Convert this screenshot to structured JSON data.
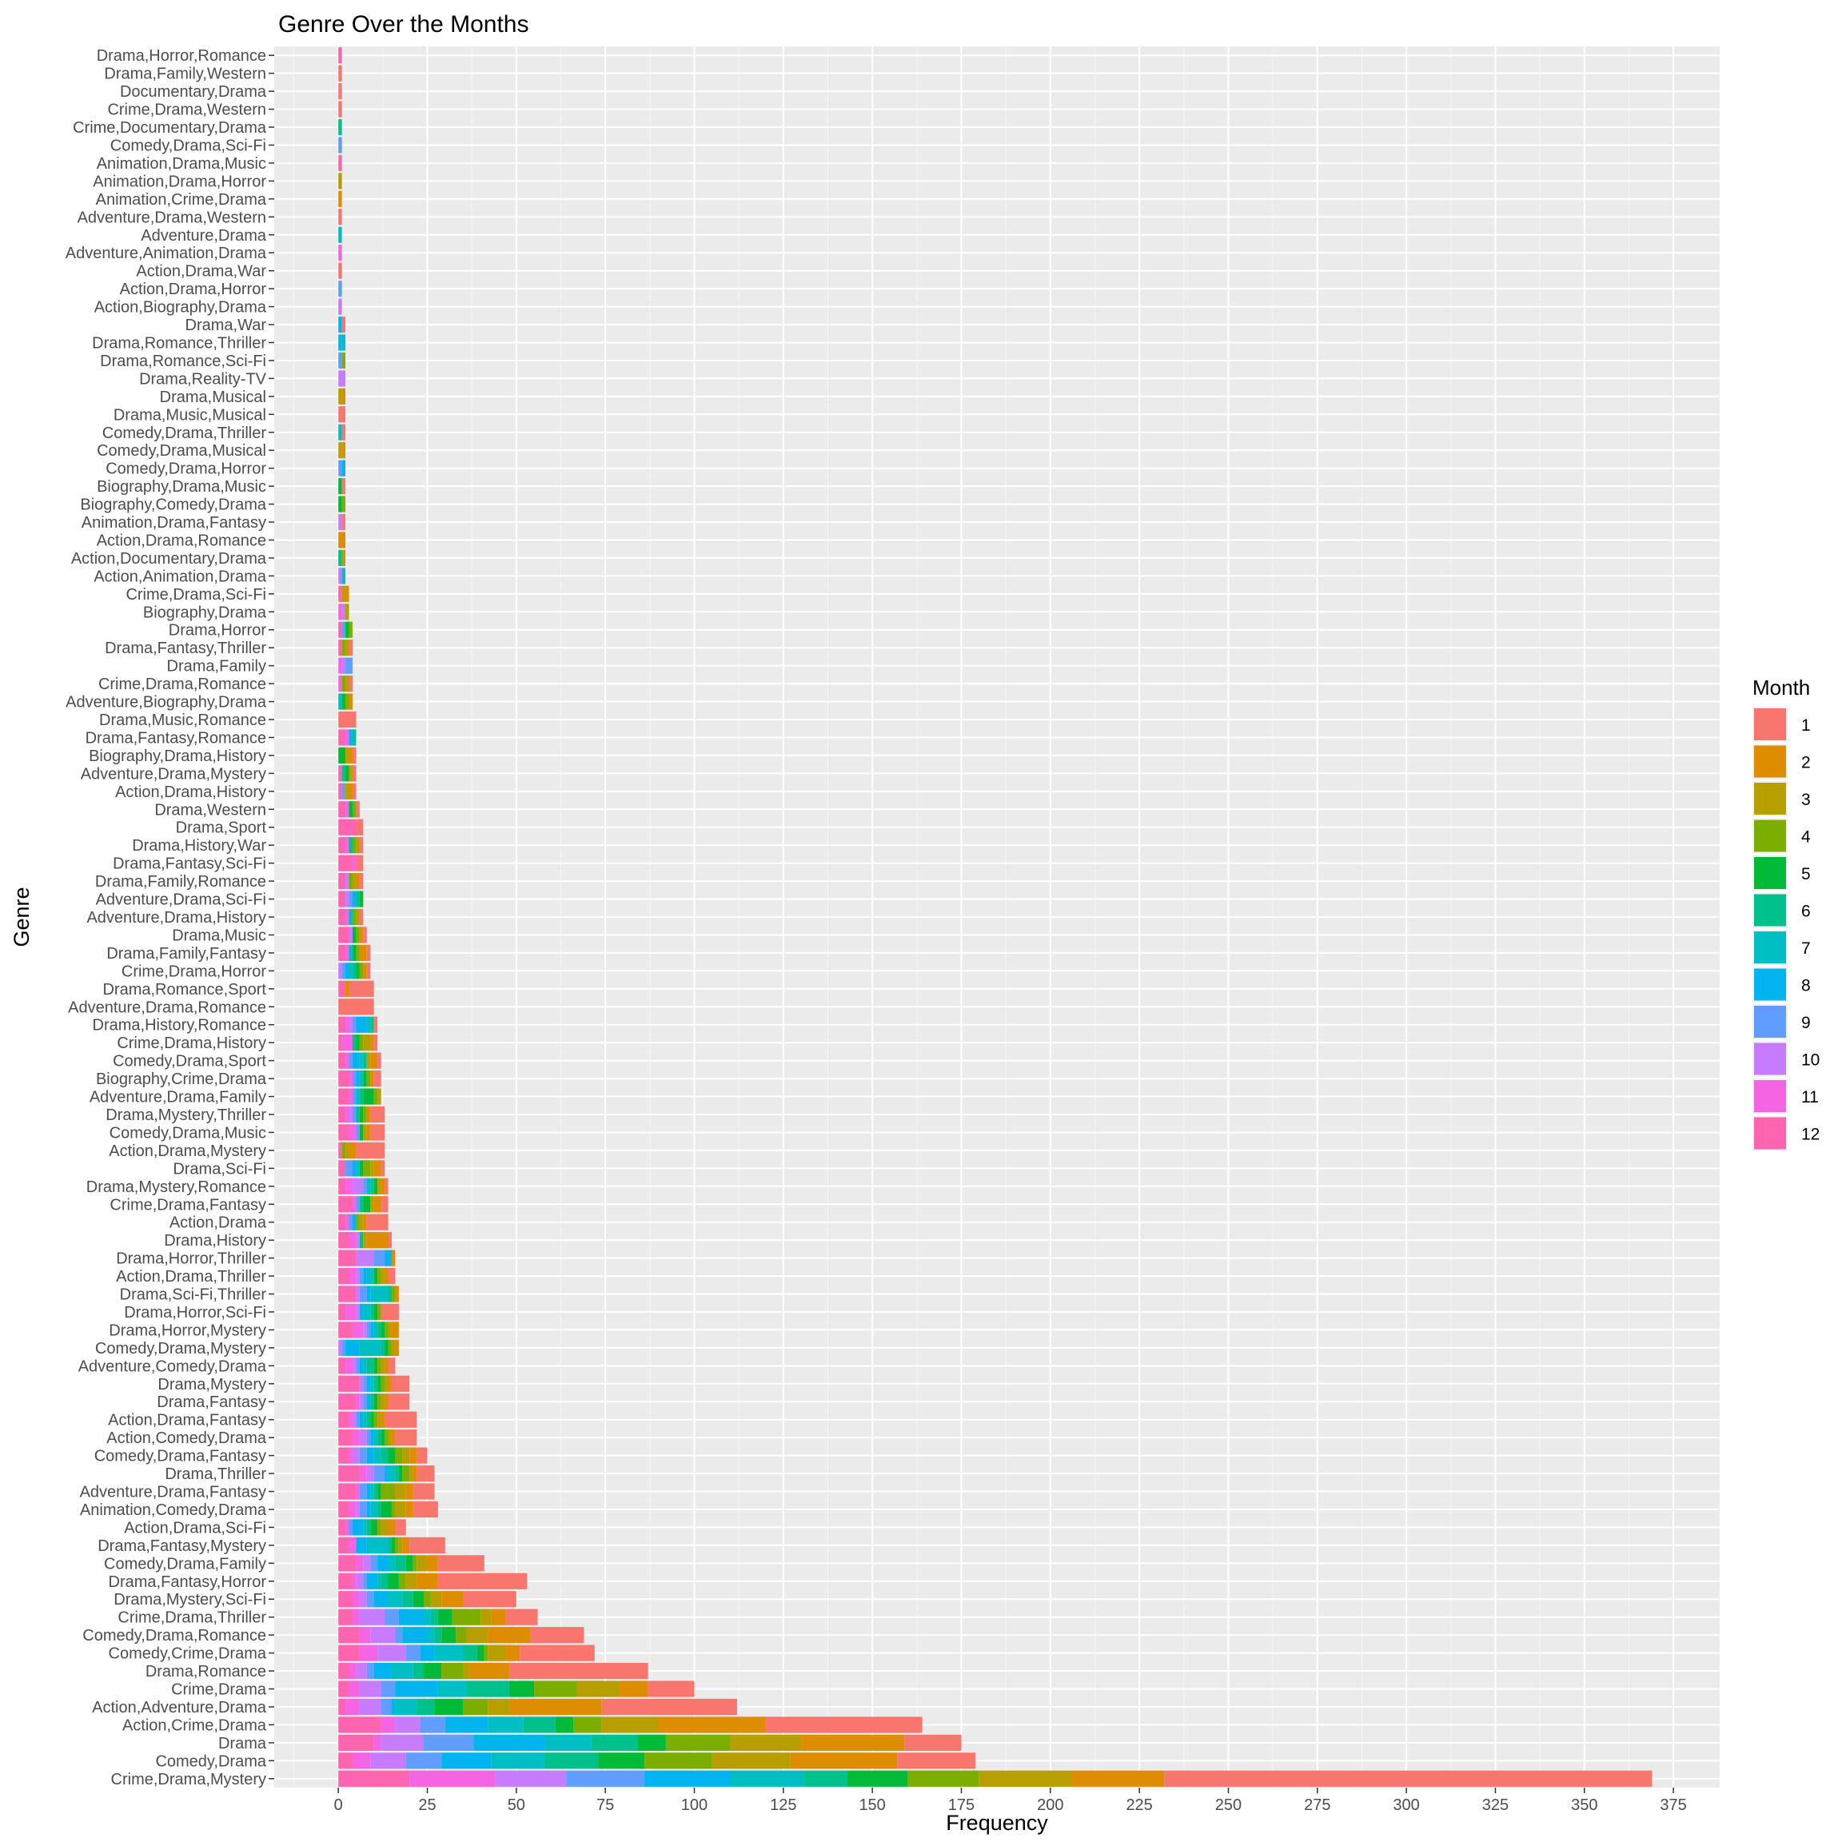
{
  "chart_data": {
    "type": "bar",
    "orientation": "horizontal",
    "stacked": true,
    "title": "Genre Over the Months",
    "xlabel": "Frequency",
    "ylabel": "Genre",
    "xlim": [
      -18,
      388
    ],
    "xticks": [
      0,
      25,
      50,
      75,
      100,
      125,
      150,
      175,
      200,
      225,
      250,
      275,
      300,
      325,
      350,
      375
    ],
    "grid": true,
    "legend": {
      "title": "Month",
      "position": "right",
      "entries": [
        "1",
        "2",
        "3",
        "4",
        "5",
        "6",
        "7",
        "8",
        "9",
        "10",
        "11",
        "12"
      ],
      "colors": [
        "#F8766D",
        "#DE8C00",
        "#B79F00",
        "#7CAE00",
        "#00BA38",
        "#00C08B",
        "#00BFC4",
        "#00B4F0",
        "#619CFF",
        "#C77CFF",
        "#F564E3",
        "#FF64B0"
      ]
    },
    "series_order": "stack from month 12 at zero outward to month 1",
    "categories": [
      "Drama,Horror,Romance",
      "Drama,Family,Western",
      "Documentary,Drama",
      "Crime,Drama,Western",
      "Crime,Documentary,Drama",
      "Comedy,Drama,Sci-Fi",
      "Animation,Drama,Music",
      "Animation,Drama,Horror",
      "Animation,Crime,Drama",
      "Adventure,Drama,Western",
      "Adventure,Drama",
      "Adventure,Animation,Drama",
      "Action,Drama,War",
      "Action,Drama,Horror",
      "Action,Biography,Drama",
      "Drama,War",
      "Drama,Romance,Thriller",
      "Drama,Romance,Sci-Fi",
      "Drama,Reality-TV",
      "Drama,Musical",
      "Drama,Music,Musical",
      "Comedy,Drama,Thriller",
      "Comedy,Drama,Musical",
      "Comedy,Drama,Horror",
      "Biography,Drama,Music",
      "Biography,Comedy,Drama",
      "Animation,Drama,Fantasy",
      "Action,Drama,Romance",
      "Action,Documentary,Drama",
      "Action,Animation,Drama",
      "Crime,Drama,Sci-Fi",
      "Biography,Drama",
      "Drama,Horror",
      "Drama,Fantasy,Thriller",
      "Drama,Family",
      "Crime,Drama,Romance",
      "Adventure,Biography,Drama",
      "Drama,Music,Romance",
      "Drama,Fantasy,Romance",
      "Biography,Drama,History",
      "Adventure,Drama,Mystery",
      "Action,Drama,History",
      "Drama,Western",
      "Drama,Sport",
      "Drama,History,War",
      "Drama,Fantasy,Sci-Fi",
      "Drama,Family,Romance",
      "Adventure,Drama,Sci-Fi",
      "Adventure,Drama,History",
      "Drama,Music",
      "Drama,Family,Fantasy",
      "Crime,Drama,Horror",
      "Drama,Romance,Sport",
      "Adventure,Drama,Romance",
      "Drama,History,Romance",
      "Crime,Drama,History",
      "Comedy,Drama,Sport",
      "Biography,Crime,Drama",
      "Adventure,Drama,Family",
      "Drama,Mystery,Thriller",
      "Comedy,Drama,Music",
      "Action,Drama,Mystery",
      "Drama,Sci-Fi",
      "Drama,Mystery,Romance",
      "Crime,Drama,Fantasy",
      "Action,Drama",
      "Drama,History",
      "Drama,Horror,Thriller",
      "Action,Drama,Thriller",
      "Drama,Sci-Fi,Thriller",
      "Drama,Horror,Sci-Fi",
      "Drama,Horror,Mystery",
      "Comedy,Drama,Mystery",
      "Adventure,Comedy,Drama",
      "Drama,Mystery",
      "Drama,Fantasy",
      "Action,Drama,Fantasy",
      "Action,Comedy,Drama",
      "Comedy,Drama,Fantasy",
      "Drama,Thriller",
      "Adventure,Drama,Fantasy",
      "Animation,Comedy,Drama",
      "Action,Drama,Sci-Fi",
      "Drama,Fantasy,Mystery",
      "Comedy,Drama,Family",
      "Drama,Fantasy,Horror",
      "Drama,Mystery,Sci-Fi",
      "Crime,Drama,Thriller",
      "Comedy,Drama,Romance",
      "Comedy,Crime,Drama",
      "Drama,Romance",
      "Crime,Drama",
      "Action,Adventure,Drama",
      "Action,Crime,Drama",
      "Drama",
      "Comedy,Drama",
      "Crime,Drama,Mystery"
    ],
    "values_by_month_1_to_12": [
      [
        0,
        0,
        0,
        0,
        0,
        0,
        0,
        0,
        0,
        0,
        0,
        1
      ],
      [
        1,
        0,
        0,
        0,
        0,
        0,
        0,
        0,
        0,
        0,
        0,
        0
      ],
      [
        1,
        0,
        0,
        0,
        0,
        0,
        0,
        0,
        0,
        0,
        0,
        0
      ],
      [
        1,
        0,
        0,
        0,
        0,
        0,
        0,
        0,
        0,
        0,
        0,
        0
      ],
      [
        0,
        0,
        0,
        0,
        0,
        1,
        0,
        0,
        0,
        0,
        0,
        0
      ],
      [
        0,
        0,
        0,
        0,
        0,
        0,
        0,
        0,
        1,
        0,
        0,
        0
      ],
      [
        0,
        0,
        0,
        0,
        0,
        0,
        0,
        0,
        0,
        0,
        0,
        1
      ],
      [
        0,
        0,
        1,
        0,
        0,
        0,
        0,
        0,
        0,
        0,
        0,
        0
      ],
      [
        0,
        1,
        0,
        0,
        0,
        0,
        0,
        0,
        0,
        0,
        0,
        0
      ],
      [
        1,
        0,
        0,
        0,
        0,
        0,
        0,
        0,
        0,
        0,
        0,
        0
      ],
      [
        0,
        0,
        0,
        0,
        0,
        0,
        1,
        0,
        0,
        0,
        0,
        0
      ],
      [
        0,
        0,
        0,
        0,
        0,
        0,
        0,
        0,
        0,
        0,
        1,
        0
      ],
      [
        1,
        0,
        0,
        0,
        0,
        0,
        0,
        0,
        0,
        0,
        0,
        0
      ],
      [
        0,
        0,
        0,
        0,
        0,
        0,
        0,
        0,
        1,
        0,
        0,
        0
      ],
      [
        0,
        0,
        0,
        0,
        0,
        0,
        0,
        0,
        0,
        1,
        0,
        0
      ],
      [
        1,
        0,
        0,
        0,
        0,
        0,
        0,
        1,
        0,
        0,
        0,
        0
      ],
      [
        0,
        0,
        0,
        0,
        0,
        0,
        1,
        1,
        0,
        0,
        0,
        0
      ],
      [
        0,
        0,
        0,
        1,
        0,
        0,
        0,
        0,
        1,
        0,
        0,
        0
      ],
      [
        0,
        0,
        0,
        0,
        0,
        0,
        0,
        0,
        0,
        2,
        0,
        0
      ],
      [
        0,
        1,
        1,
        0,
        0,
        0,
        0,
        0,
        0,
        0,
        0,
        0
      ],
      [
        2,
        0,
        0,
        0,
        0,
        0,
        0,
        0,
        0,
        0,
        0,
        0
      ],
      [
        1,
        0,
        0,
        0,
        0,
        0,
        1,
        0,
        0,
        0,
        0,
        0
      ],
      [
        0,
        1,
        1,
        0,
        0,
        0,
        0,
        0,
        0,
        0,
        0,
        0
      ],
      [
        0,
        0,
        0,
        0,
        0,
        0,
        0,
        1,
        1,
        0,
        0,
        0
      ],
      [
        1,
        0,
        0,
        0,
        1,
        0,
        0,
        0,
        0,
        0,
        0,
        0
      ],
      [
        0,
        0,
        0,
        1,
        1,
        0,
        0,
        0,
        0,
        0,
        0,
        0
      ],
      [
        1,
        0,
        0,
        0,
        0,
        0,
        0,
        0,
        0,
        1,
        0,
        0
      ],
      [
        0,
        2,
        0,
        0,
        0,
        0,
        0,
        0,
        0,
        0,
        0,
        0
      ],
      [
        0,
        0,
        1,
        0,
        0,
        1,
        0,
        0,
        0,
        0,
        0,
        0
      ],
      [
        0,
        0,
        0,
        0,
        0,
        0,
        1,
        0,
        0,
        1,
        0,
        0
      ],
      [
        0,
        1,
        1,
        0,
        0,
        0,
        0,
        0,
        0,
        0,
        0,
        1
      ],
      [
        0,
        0,
        1,
        0,
        0,
        0,
        0,
        0,
        0,
        1,
        1,
        0
      ],
      [
        0,
        0,
        0,
        1,
        1,
        0,
        0,
        0,
        1,
        0,
        0,
        1
      ],
      [
        1,
        0,
        1,
        1,
        0,
        0,
        0,
        0,
        0,
        0,
        0,
        1
      ],
      [
        0,
        0,
        0,
        0,
        0,
        0,
        0,
        0,
        2,
        1,
        1,
        0
      ],
      [
        1,
        0,
        1,
        1,
        0,
        0,
        0,
        0,
        0,
        0,
        1,
        0
      ],
      [
        0,
        1,
        0,
        1,
        1,
        0,
        1,
        0,
        0,
        0,
        0,
        0
      ],
      [
        5,
        0,
        0,
        0,
        0,
        0,
        0,
        0,
        0,
        0,
        0,
        0
      ],
      [
        0,
        0,
        0,
        0,
        0,
        1,
        0,
        1,
        0,
        0,
        1,
        2
      ],
      [
        1,
        1,
        1,
        0,
        2,
        0,
        0,
        0,
        0,
        0,
        0,
        0
      ],
      [
        1,
        0,
        1,
        0,
        1,
        1,
        0,
        0,
        0,
        0,
        0,
        1
      ],
      [
        1,
        1,
        1,
        0,
        0,
        0,
        0,
        0,
        1,
        0,
        0,
        1
      ],
      [
        1,
        0,
        0,
        1,
        1,
        0,
        0,
        0,
        0,
        0,
        1,
        2
      ],
      [
        2,
        0,
        0,
        0,
        0,
        0,
        0,
        0,
        0,
        0,
        0,
        5
      ],
      [
        1,
        0,
        1,
        1,
        0,
        1,
        0,
        0,
        0,
        0,
        1,
        2
      ],
      [
        2,
        0,
        0,
        0,
        0,
        0,
        0,
        0,
        0,
        0,
        1,
        4
      ],
      [
        1,
        1,
        1,
        1,
        0,
        0,
        0,
        0,
        0,
        1,
        0,
        2
      ],
      [
        0,
        0,
        0,
        0,
        1,
        1,
        0,
        1,
        1,
        1,
        0,
        2
      ],
      [
        1,
        0,
        1,
        1,
        0,
        0,
        1,
        0,
        0,
        0,
        1,
        2
      ],
      [
        1,
        1,
        0,
        1,
        1,
        0,
        0,
        0,
        0,
        1,
        0,
        3
      ],
      [
        1,
        2,
        0,
        1,
        1,
        0,
        1,
        0,
        0,
        0,
        1,
        2
      ],
      [
        1,
        1,
        0,
        1,
        1,
        1,
        1,
        1,
        1,
        1,
        0,
        0
      ],
      [
        7,
        1,
        0,
        0,
        0,
        0,
        0,
        0,
        0,
        0,
        0,
        2
      ],
      [
        10,
        0,
        0,
        0,
        0,
        0,
        0,
        0,
        0,
        0,
        0,
        0
      ],
      [
        1,
        0,
        0,
        0,
        0,
        1,
        1,
        3,
        1,
        1,
        1,
        2
      ],
      [
        1,
        1,
        2,
        1,
        1,
        1,
        0,
        0,
        0,
        0,
        3,
        1
      ],
      [
        1,
        2,
        1,
        0,
        0,
        1,
        1,
        2,
        1,
        0,
        1,
        2
      ],
      [
        2,
        1,
        0,
        1,
        1,
        0,
        1,
        1,
        1,
        0,
        1,
        3
      ],
      [
        0,
        0,
        1,
        1,
        3,
        1,
        1,
        0,
        1,
        0,
        1,
        3
      ],
      [
        4,
        1,
        0,
        1,
        1,
        1,
        0,
        0,
        1,
        1,
        1,
        2
      ],
      [
        4,
        1,
        1,
        0,
        1,
        0,
        0,
        0,
        1,
        0,
        2,
        3
      ],
      [
        8,
        2,
        1,
        1,
        0,
        0,
        0,
        0,
        0,
        0,
        0,
        1
      ],
      [
        1,
        2,
        1,
        2,
        1,
        0,
        1,
        1,
        2,
        0,
        0,
        2
      ],
      [
        1,
        1,
        1,
        0,
        1,
        1,
        1,
        0,
        1,
        3,
        2,
        2
      ],
      [
        2,
        2,
        1,
        0,
        2,
        1,
        0,
        0,
        1,
        0,
        1,
        4
      ],
      [
        6,
        1,
        1,
        1,
        0,
        0,
        0,
        1,
        1,
        0,
        1,
        2
      ],
      [
        1,
        6,
        1,
        0,
        0,
        1,
        0,
        0,
        0,
        1,
        2,
        3
      ],
      [
        0,
        1,
        0,
        0,
        0,
        0,
        0,
        2,
        3,
        5,
        0,
        5
      ],
      [
        2,
        1,
        1,
        1,
        1,
        0,
        2,
        1,
        1,
        1,
        2,
        3
      ],
      [
        0,
        1,
        0,
        1,
        0,
        1,
        5,
        1,
        2,
        1,
        0,
        5
      ],
      [
        5,
        0,
        0,
        1,
        1,
        1,
        2,
        1,
        0,
        1,
        3,
        2
      ],
      [
        0,
        2,
        1,
        1,
        1,
        1,
        1,
        1,
        1,
        1,
        3,
        4
      ],
      [
        0,
        1,
        1,
        1,
        1,
        1,
        6,
        4,
        1,
        1,
        0,
        0
      ],
      [
        2,
        1,
        1,
        1,
        1,
        2,
        1,
        1,
        1,
        1,
        2,
        2
      ],
      [
        5,
        1,
        1,
        1,
        1,
        1,
        1,
        1,
        1,
        1,
        0,
        6
      ],
      [
        6,
        1,
        1,
        1,
        1,
        1,
        0,
        1,
        1,
        1,
        1,
        5
      ],
      [
        9,
        1,
        1,
        1,
        1,
        1,
        1,
        1,
        1,
        1,
        1,
        3
      ],
      [
        6,
        1,
        1,
        1,
        1,
        1,
        1,
        1,
        1,
        2,
        2,
        4
      ],
      [
        3,
        2,
        2,
        2,
        2,
        2,
        2,
        2,
        2,
        2,
        1,
        3
      ],
      [
        5,
        1,
        1,
        2,
        1,
        1,
        2,
        1,
        3,
        2,
        2,
        6
      ],
      [
        6,
        2,
        3,
        4,
        1,
        1,
        1,
        1,
        2,
        0,
        1,
        5
      ],
      [
        7,
        2,
        3,
        1,
        3,
        1,
        2,
        1,
        2,
        1,
        2,
        3
      ],
      [
        3,
        2,
        2,
        1,
        2,
        1,
        1,
        3,
        1,
        0,
        1,
        2
      ],
      [
        10,
        2,
        1,
        1,
        1,
        1,
        6,
        3,
        0,
        0,
        2,
        3
      ],
      [
        13,
        3,
        3,
        1,
        2,
        3,
        2,
        3,
        2,
        2,
        2,
        5
      ],
      [
        25,
        6,
        3,
        2,
        3,
        2,
        1,
        3,
        1,
        2,
        1,
        4
      ],
      [
        15,
        6,
        3,
        2,
        3,
        3,
        4,
        4,
        2,
        2,
        2,
        4
      ],
      [
        9,
        4,
        3,
        8,
        4,
        2,
        2,
        7,
        4,
        7,
        2,
        4
      ],
      [
        15,
        12,
        6,
        3,
        4,
        2,
        2,
        7,
        2,
        7,
        3,
        6
      ],
      [
        21,
        4,
        5,
        1,
        2,
        4,
        8,
        4,
        4,
        8,
        5,
        6
      ],
      [
        39,
        11,
        2,
        6,
        5,
        3,
        6,
        5,
        2,
        3,
        2,
        3
      ],
      [
        13,
        8,
        12,
        12,
        7,
        12,
        8,
        12,
        4,
        6,
        3,
        3
      ],
      [
        38,
        26,
        6,
        7,
        8,
        5,
        6,
        1,
        3,
        6,
        4,
        2
      ],
      [
        44,
        30,
        16,
        8,
        5,
        9,
        10,
        12,
        7,
        7,
        4,
        12
      ],
      [
        16,
        29,
        20,
        18,
        8,
        13,
        13,
        20,
        14,
        12,
        2,
        10
      ],
      [
        22,
        30,
        22,
        19,
        13,
        15,
        15,
        14,
        10,
        10,
        5,
        4
      ],
      [
        137,
        26,
        26,
        20,
        17,
        12,
        21,
        24,
        22,
        20,
        24,
        20
      ]
    ]
  }
}
